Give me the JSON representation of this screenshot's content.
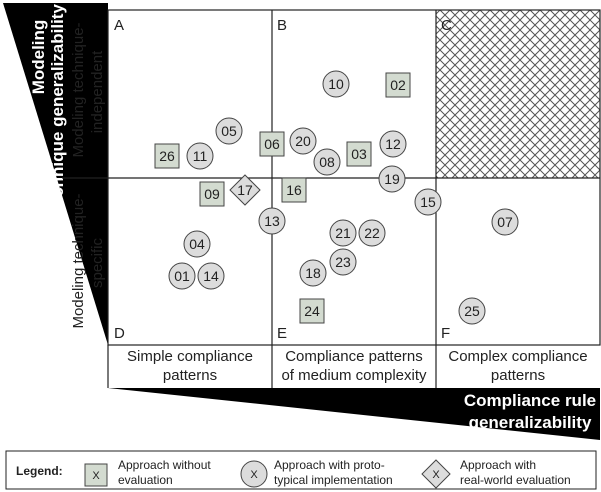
{
  "vertical_axis": {
    "title_line1": "Modeling",
    "title_line2": "technique generalizability",
    "row_top_line1": "Modeling technique-",
    "row_top_line2": "independent",
    "row_bottom_line1": "Modeling technique-",
    "row_bottom_line2": "specific"
  },
  "horizontal_axis": {
    "title_line1": "Compliance rule",
    "title_line2": "generalizability",
    "col1_line1": "Simple compliance",
    "col1_line2": "patterns",
    "col2_line1": "Compliance patterns",
    "col2_line2": "of medium complexity",
    "col3_line1": "Complex compliance",
    "col3_line2": "patterns"
  },
  "cells": {
    "a": "A",
    "b": "B",
    "c": "C",
    "d": "D",
    "e": "E",
    "f": "F"
  },
  "approaches": [
    {
      "id": "01",
      "kind": "circle"
    },
    {
      "id": "02",
      "kind": "square"
    },
    {
      "id": "03",
      "kind": "square"
    },
    {
      "id": "04",
      "kind": "circle"
    },
    {
      "id": "05",
      "kind": "circle"
    },
    {
      "id": "06",
      "kind": "square"
    },
    {
      "id": "07",
      "kind": "circle"
    },
    {
      "id": "08",
      "kind": "circle"
    },
    {
      "id": "09",
      "kind": "square"
    },
    {
      "id": "10",
      "kind": "circle"
    },
    {
      "id": "11",
      "kind": "circle"
    },
    {
      "id": "12",
      "kind": "circle"
    },
    {
      "id": "13",
      "kind": "circle"
    },
    {
      "id": "14",
      "kind": "circle"
    },
    {
      "id": "15",
      "kind": "circle"
    },
    {
      "id": "16",
      "kind": "square"
    },
    {
      "id": "17",
      "kind": "diamond"
    },
    {
      "id": "18",
      "kind": "circle"
    },
    {
      "id": "19",
      "kind": "circle"
    },
    {
      "id": "20",
      "kind": "circle"
    },
    {
      "id": "21",
      "kind": "circle"
    },
    {
      "id": "22",
      "kind": "circle"
    },
    {
      "id": "23",
      "kind": "circle"
    },
    {
      "id": "24",
      "kind": "square"
    },
    {
      "id": "25",
      "kind": "circle"
    },
    {
      "id": "26",
      "kind": "square"
    }
  ],
  "legend": {
    "title": "Legend:",
    "marker_symbol": "X",
    "item1_line1": "Approach without",
    "item1_line2": "evaluation",
    "item2_line1": "Approach with proto-",
    "item2_line2": "typical implementation",
    "item3_line1": "Approach with",
    "item3_line2": "real-world evaluation"
  },
  "colors": {
    "square_fill": "#d3dbd0",
    "circle_fill": "#dcdcdc",
    "triangle_fill": "#000000"
  }
}
